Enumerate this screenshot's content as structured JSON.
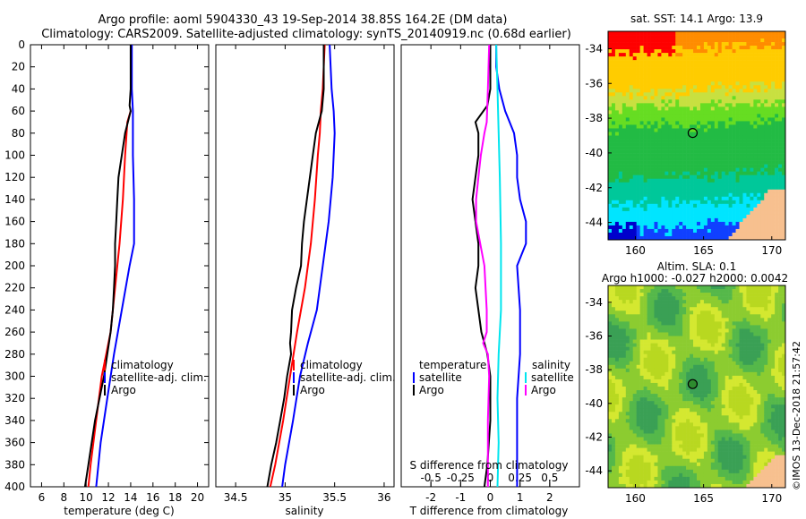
{
  "header": {
    "line1": "Argo profile: aoml 5904330_43 19-Sep-2014 38.85S 164.2E (DM data)",
    "line2": "Climatology: CARS2009. Satellite-adjusted climatology: synTS_20140919.nc (0.68d earlier)"
  },
  "watermark": "©IMOS 13-Dec-2018 21:57:42",
  "colors": {
    "climatology": "#ff0000",
    "satellite": "#0000ff",
    "argo": "#000000",
    "sal_satellite": "#00e5ee",
    "sal_argo": "#ff00ff"
  },
  "depth_axis": {
    "ylim": [
      0,
      400
    ],
    "ticks": [
      0,
      20,
      40,
      60,
      80,
      100,
      120,
      140,
      160,
      180,
      200,
      220,
      240,
      260,
      280,
      300,
      320,
      340,
      360,
      380,
      400
    ]
  },
  "chart_data": [
    {
      "type": "line",
      "id": "temperature",
      "xlabel": "temperature (deg C)",
      "xlim": [
        5,
        21
      ],
      "xticks": [
        6,
        8,
        10,
        12,
        14,
        16,
        18,
        20
      ],
      "legend": [
        "climatology",
        "satellite-adj. clim.",
        "Argo"
      ],
      "series": [
        {
          "name": "climatology",
          "color": "#ff0000",
          "depth": [
            60,
            70,
            100,
            140,
            180,
            220,
            260,
            280,
            300,
            340,
            380,
            400
          ],
          "values": [
            14.0,
            13.7,
            13.5,
            13.3,
            13.0,
            12.6,
            12.2,
            11.8,
            11.4,
            10.9,
            10.4,
            10.2
          ]
        },
        {
          "name": "satellite-adj. clim.",
          "color": "#0000ff",
          "depth": [
            0,
            20,
            40,
            60,
            100,
            140,
            180,
            200,
            240,
            280,
            320,
            360,
            400
          ],
          "values": [
            14.1,
            14.1,
            14.1,
            14.2,
            14.2,
            14.3,
            14.3,
            13.9,
            13.2,
            12.5,
            11.9,
            11.3,
            10.9
          ]
        },
        {
          "name": "Argo",
          "color": "#000000",
          "depth": [
            0,
            20,
            40,
            55,
            60,
            80,
            100,
            120,
            140,
            160,
            180,
            200,
            220,
            240,
            260,
            280,
            300,
            320,
            340,
            360,
            380,
            400
          ],
          "values": [
            14.0,
            14.0,
            14.0,
            13.9,
            14.0,
            13.5,
            13.2,
            12.9,
            12.8,
            12.7,
            12.6,
            12.6,
            12.5,
            12.4,
            12.2,
            11.9,
            11.6,
            11.2,
            10.8,
            10.5,
            10.2,
            9.9
          ]
        }
      ]
    },
    {
      "type": "line",
      "id": "salinity",
      "xlabel": "salinity",
      "xlim": [
        34.3,
        36.1
      ],
      "xticks": [
        34.5,
        35,
        35.5,
        36
      ],
      "xticklabels": [
        "34.5",
        "35",
        "35.5",
        "36"
      ],
      "legend": [
        "climatology",
        "satellite-adj. clim.",
        "Argo"
      ],
      "series": [
        {
          "name": "climatology",
          "color": "#ff0000",
          "depth": [
            0,
            40,
            60,
            80,
            100,
            140,
            180,
            220,
            260,
            300,
            340,
            380,
            400
          ],
          "values": [
            35.4,
            35.38,
            35.36,
            35.35,
            35.33,
            35.3,
            35.26,
            35.2,
            35.12,
            35.05,
            34.98,
            34.9,
            34.85
          ]
        },
        {
          "name": "satellite-adj. clim.",
          "color": "#0000ff",
          "depth": [
            0,
            40,
            60,
            80,
            120,
            160,
            200,
            240,
            270,
            300,
            340,
            380,
            400
          ],
          "values": [
            35.45,
            35.47,
            35.49,
            35.5,
            35.48,
            35.44,
            35.38,
            35.32,
            35.23,
            35.15,
            35.08,
            35.0,
            34.97
          ]
        },
        {
          "name": "Argo",
          "color": "#000000",
          "depth": [
            0,
            40,
            50,
            60,
            70,
            80,
            100,
            120,
            140,
            160,
            180,
            200,
            220,
            240,
            260,
            270,
            280,
            300,
            320,
            340,
            360,
            380,
            400
          ],
          "values": [
            35.39,
            35.39,
            35.38,
            35.37,
            35.34,
            35.31,
            35.28,
            35.25,
            35.22,
            35.19,
            35.17,
            35.16,
            35.11,
            35.07,
            35.06,
            35.05,
            35.06,
            35.02,
            34.99,
            34.95,
            34.91,
            34.86,
            34.82
          ]
        }
      ]
    },
    {
      "type": "line",
      "id": "differences",
      "xlabel": "T difference from climatology",
      "xlim": [
        -3,
        3
      ],
      "xticks": [
        -2,
        -1,
        0,
        1,
        2
      ],
      "top_xlabel": "S difference from climatology",
      "top_xlim": [
        -0.75,
        0.75
      ],
      "top_xticks": [
        -0.5,
        -0.25,
        0,
        0.25,
        0.5
      ],
      "top_xticklabels": [
        "-0.5",
        "-0.25",
        "0",
        "0.25",
        "0.5"
      ],
      "legend_temperature": {
        "title": "temperature",
        "items": [
          "satellite",
          "Argo"
        ]
      },
      "legend_salinity": {
        "title": "salinity",
        "items": [
          "satellite",
          "Argo"
        ]
      },
      "series": [
        {
          "name": "temperature satellite",
          "color": "#0000ff",
          "depth": [
            0,
            20,
            40,
            60,
            80,
            100,
            120,
            140,
            160,
            180,
            200,
            240,
            280,
            320,
            360,
            400
          ],
          "values": [
            0.2,
            0.2,
            0.3,
            0.5,
            0.8,
            0.9,
            0.9,
            1.0,
            1.2,
            1.2,
            0.9,
            1.0,
            1.0,
            0.9,
            0.9,
            0.9
          ]
        },
        {
          "name": "temperature Argo",
          "color": "#000000",
          "depth": [
            0,
            40,
            55,
            70,
            80,
            100,
            140,
            180,
            200,
            220,
            240,
            260,
            270,
            280,
            300,
            340,
            380,
            400
          ],
          "values": [
            0.0,
            0.0,
            -0.1,
            -0.5,
            -0.4,
            -0.4,
            -0.6,
            -0.4,
            -0.4,
            -0.5,
            -0.4,
            -0.3,
            -0.2,
            -0.1,
            0.0,
            0.0,
            -0.1,
            -0.2
          ]
        },
        {
          "name": "salinity satellite",
          "color": "#00e5ee",
          "depth": [
            0,
            40,
            80,
            120,
            180,
            240,
            280,
            320,
            360,
            400
          ],
          "values": [
            0.05,
            0.06,
            0.07,
            0.08,
            0.09,
            0.09,
            0.07,
            0.06,
            0.07,
            0.06
          ]
        },
        {
          "name": "salinity Argo",
          "color": "#ff00ff",
          "depth": [
            0,
            40,
            70,
            80,
            100,
            120,
            140,
            160,
            200,
            240,
            260,
            270,
            280,
            300,
            340,
            380,
            400
          ],
          "values": [
            -0.01,
            -0.02,
            -0.03,
            -0.05,
            -0.08,
            -0.1,
            -0.12,
            -0.12,
            -0.05,
            -0.03,
            -0.03,
            -0.06,
            -0.02,
            -0.01,
            -0.02,
            -0.02,
            -0.02
          ]
        }
      ]
    },
    {
      "type": "heatmap",
      "id": "sst-map",
      "title": "sat. SST: 14.1 Argo: 13.9",
      "xlim": [
        158,
        171
      ],
      "ylim": [
        -45,
        -33
      ],
      "xticks": [
        160,
        165,
        170
      ],
      "yticks": [
        -34,
        -36,
        -38,
        -40,
        -42,
        -44
      ],
      "marker": {
        "lon": 164.2,
        "lat": -38.85
      }
    },
    {
      "type": "heatmap",
      "id": "sla-map",
      "title": "Altim. SLA: 0.1",
      "subtitle": "Argo h1000: -0.027 h2000: 0.0042",
      "xlim": [
        158,
        171
      ],
      "ylim": [
        -45,
        -33
      ],
      "xticks": [
        160,
        165,
        170
      ],
      "yticks": [
        -34,
        -36,
        -38,
        -40,
        -42,
        -44
      ],
      "marker": {
        "lon": 164.2,
        "lat": -38.85
      }
    }
  ]
}
